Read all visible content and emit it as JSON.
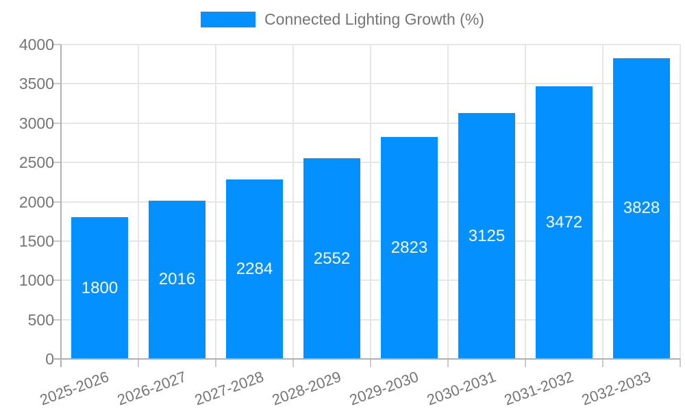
{
  "chart_data": {
    "type": "bar",
    "title": "",
    "legend": "Connected Lighting Growth (%)",
    "legend_position": "top",
    "categories": [
      "2025-2026",
      "2026-2027",
      "2027-2028",
      "2028-2029",
      "2029-2030",
      "2030-2031",
      "2031-2032",
      "2032-2033"
    ],
    "values": [
      1800,
      2016,
      2284,
      2552,
      2823,
      3125,
      3472,
      3828
    ],
    "xlabel": "",
    "ylabel": "",
    "ylim": [
      0,
      4000
    ],
    "ytick_step": 500,
    "yticks": [
      0,
      500,
      1000,
      1500,
      2000,
      2500,
      3000,
      3500,
      4000
    ],
    "grid": true,
    "x_label_rotation_deg": -20,
    "colors": {
      "bar": "#0590ff",
      "bar_value_label": "#ffffff",
      "axis_text": "#757575",
      "gridline": "#e6e6e6",
      "axis_line": "#b0b0b0",
      "tick": "#c9c9c9",
      "background": "#ffffff"
    }
  }
}
